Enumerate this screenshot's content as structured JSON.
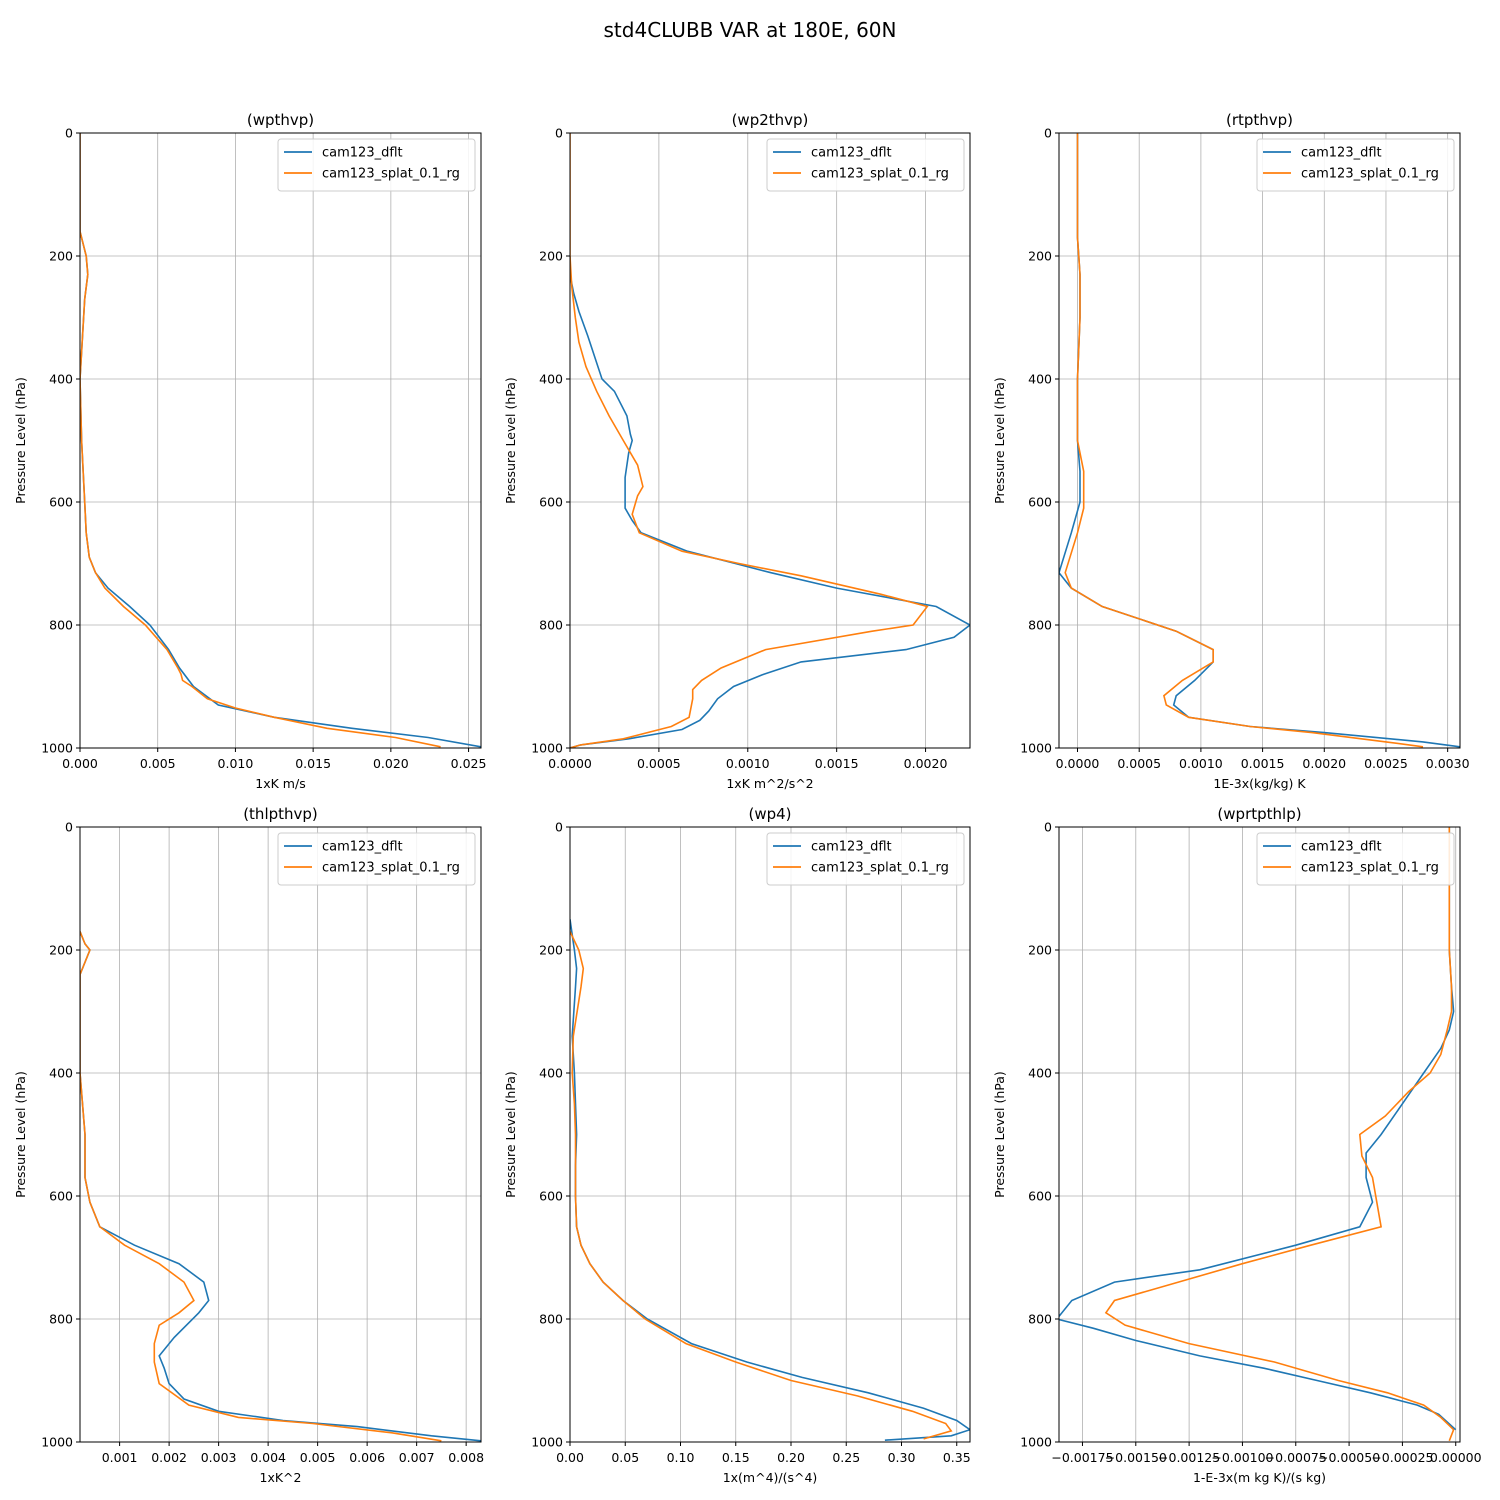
{
  "figure_title": "std4CLUBB VAR at 180E, 60N",
  "series_colors": [
    "#1f77b4",
    "#ff7f0e"
  ],
  "chart_data": [
    {
      "type": "line",
      "title": "(wpthvp)",
      "xlabel": "1xK m/s",
      "ylabel": "Pressure Level (hPa)",
      "xlim": [
        0,
        0.0258
      ],
      "ylim": [
        1000,
        0
      ],
      "y_inverted": true,
      "xticks": [
        0,
        0.005,
        0.01,
        0.015,
        0.02,
        0.025
      ],
      "xtick_labels": [
        "0.000",
        "0.005",
        "0.010",
        "0.015",
        "0.020",
        "0.025"
      ],
      "yticks": [
        0,
        200,
        400,
        600,
        800,
        1000
      ],
      "ytick_labels": [
        "0",
        "200",
        "400",
        "600",
        "800",
        "1000"
      ],
      "grid": true,
      "legend": "top-right",
      "series": [
        {
          "name": "cam123_dflt",
          "x": [
            0,
            0,
            0.0004,
            0.0005,
            0.0003,
            0,
            0.0001,
            0.0003,
            0.0004,
            0.0006,
            0.001,
            0.0018,
            0.0032,
            0.0045,
            0.0057,
            0.0064,
            0.0073,
            0.0089,
            0.0125,
            0.0175,
            0.0224,
            0.0258
          ],
          "y": [
            0,
            160,
            200,
            230,
            270,
            400,
            500,
            600,
            650,
            690,
            715,
            740,
            770,
            800,
            840,
            870,
            900,
            930,
            950,
            968,
            983,
            998
          ]
        },
        {
          "name": "cam123_splat_0.1_rg",
          "x": [
            0,
            0,
            0.0004,
            0.0005,
            0.0003,
            0,
            0.0001,
            0.0003,
            0.0004,
            0.0006,
            0.001,
            0.0016,
            0.0028,
            0.0042,
            0.0056,
            0.0063,
            0.0065,
            0.0066,
            0.0072,
            0.0082,
            0.01,
            0.0125,
            0.0159,
            0.0203,
            0.0232
          ],
          "y": [
            0,
            160,
            200,
            230,
            270,
            400,
            500,
            600,
            650,
            690,
            715,
            740,
            770,
            800,
            840,
            870,
            880,
            890,
            900,
            920,
            935,
            950,
            968,
            983,
            998
          ]
        }
      ]
    },
    {
      "type": "line",
      "title": "(wp2thvp)",
      "xlabel": "1xK m^2/s^2",
      "ylabel": "Pressure Level (hPa)",
      "xlim": [
        0,
        0.00225
      ],
      "ylim": [
        1000,
        0
      ],
      "y_inverted": true,
      "xticks": [
        0,
        0.0005,
        0.001,
        0.0015,
        0.002
      ],
      "xtick_labels": [
        "0.0000",
        "0.0005",
        "0.0010",
        "0.0015",
        "0.0020"
      ],
      "yticks": [
        0,
        200,
        400,
        600,
        800,
        1000
      ],
      "ytick_labels": [
        "0",
        "200",
        "400",
        "600",
        "800",
        "1000"
      ],
      "grid": true,
      "legend": "top-right",
      "series": [
        {
          "name": "cam123_dflt",
          "x": [
            0,
            0,
            2e-05,
            5e-05,
            0.0001,
            0.00018,
            0.00025,
            0.00032,
            0.00034,
            0.00035,
            0.00033,
            0.00031,
            0.00031,
            0.00035,
            0.0004,
            0.00066,
            0.00093,
            0.00113,
            0.0015,
            0.00206,
            0.00225,
            0.00216,
            0.00189,
            0.0013,
            0.00109,
            0.00092,
            0.00083,
            0.00078,
            0.00073,
            0.00063,
            0.00033,
            6e-05,
            0
          ],
          "y": [
            200,
            230,
            260,
            290,
            330,
            400,
            420,
            460,
            490,
            500,
            520,
            560,
            610,
            630,
            650,
            680,
            700,
            715,
            740,
            770,
            800,
            820,
            840,
            860,
            880,
            900,
            920,
            940,
            955,
            970,
            985,
            995,
            1000
          ]
        },
        {
          "name": "cam123_splat_0.1_rg",
          "x": [
            0,
            0,
            1e-05,
            3e-05,
            5e-05,
            9e-05,
            0.00015,
            0.00022,
            0.0003,
            0.00038,
            0.00041,
            0.00038,
            0.00035,
            0.00039,
            0.00063,
            0.00095,
            0.0013,
            0.00175,
            0.00201,
            0.00193,
            0.0017,
            0.0011,
            0.00085,
            0.00074,
            0.00069,
            0.00069,
            0.00067,
            0.00057,
            0.0003,
            6e-05,
            0
          ],
          "y": [
            0,
            200,
            250,
            300,
            340,
            380,
            420,
            460,
            500,
            540,
            575,
            590,
            620,
            650,
            680,
            700,
            720,
            750,
            770,
            800,
            810,
            840,
            870,
            890,
            905,
            920,
            950,
            965,
            985,
            995,
            1000
          ]
        }
      ]
    },
    {
      "type": "line",
      "title": "(rtpthvp)",
      "xlabel": "1E-3x(kg/kg) K",
      "ylabel": "Pressure Level (hPa)",
      "xlim": [
        -0.00015,
        0.0031
      ],
      "ylim": [
        1000,
        0
      ],
      "y_inverted": true,
      "xticks": [
        0,
        0.0005,
        0.001,
        0.0015,
        0.002,
        0.0025,
        0.003
      ],
      "xtick_labels": [
        "0.0000",
        "0.0005",
        "0.0010",
        "0.0015",
        "0.0020",
        "0.0025",
        "0.0030"
      ],
      "yticks": [
        0,
        200,
        400,
        600,
        800,
        1000
      ],
      "ytick_labels": [
        "0",
        "200",
        "400",
        "600",
        "800",
        "1000"
      ],
      "grid": true,
      "legend": "top-right",
      "series": [
        {
          "name": "cam123_dflt",
          "x": [
            0,
            0,
            2e-05,
            2e-05,
            0,
            0,
            2e-05,
            2e-05,
            -5e-05,
            -0.00015,
            -5e-05,
            0.0002,
            0.0008,
            0.0011,
            0.0011,
            0.00095,
            0.0008,
            0.00078,
            0.0009,
            0.0014,
            0.002,
            0.0028,
            0.0031
          ],
          "y": [
            0,
            170,
            230,
            300,
            400,
            500,
            550,
            600,
            650,
            715,
            740,
            770,
            810,
            840,
            860,
            890,
            915,
            930,
            950,
            965,
            975,
            990,
            998
          ]
        },
        {
          "name": "cam123_splat_0.1_rg",
          "x": [
            0,
            0,
            2e-05,
            2e-05,
            0,
            0,
            5e-05,
            5e-05,
            0,
            -0.0001,
            -5e-05,
            0.0002,
            0.0008,
            0.0011,
            0.0011,
            0.00085,
            0.0007,
            0.00072,
            0.0009,
            0.0014,
            0.0019,
            0.0025,
            0.0028
          ],
          "y": [
            0,
            170,
            230,
            300,
            400,
            500,
            550,
            610,
            650,
            715,
            740,
            770,
            810,
            840,
            860,
            890,
            915,
            930,
            950,
            965,
            975,
            990,
            998
          ]
        }
      ]
    },
    {
      "type": "line",
      "title": "(thlpthvp)",
      "xlabel": "1xK^2",
      "ylabel": "Pressure Level (hPa)",
      "xlim": [
        0.0002,
        0.0083
      ],
      "ylim": [
        1000,
        0
      ],
      "y_inverted": true,
      "xticks": [
        0.001,
        0.002,
        0.003,
        0.004,
        0.005,
        0.006,
        0.007,
        0.008
      ],
      "xtick_labels": [
        "0.001",
        "0.002",
        "0.003",
        "0.004",
        "0.005",
        "0.006",
        "0.007",
        "0.008"
      ],
      "yticks": [
        0,
        200,
        400,
        600,
        800,
        1000
      ],
      "ytick_labels": [
        "0",
        "200",
        "400",
        "600",
        "800",
        "1000"
      ],
      "grid": true,
      "legend": "top-right",
      "series": [
        {
          "name": "cam123_dflt",
          "x": [
            0.0002,
            0.0003,
            0.0004,
            0.0002,
            0.0002,
            0.0002,
            0.00025,
            0.0003,
            0.0003,
            0.0004,
            0.0006,
            0.0013,
            0.0022,
            0.0027,
            0.0028,
            0.0026,
            0.0021,
            0.0018,
            0.0019,
            0.002,
            0.0023,
            0.003,
            0.0043,
            0.0058,
            0.0073,
            0.0083
          ],
          "y": [
            170,
            190,
            200,
            240,
            300,
            400,
            450,
            500,
            570,
            610,
            650,
            680,
            710,
            740,
            770,
            790,
            830,
            860,
            880,
            905,
            930,
            950,
            965,
            975,
            990,
            998
          ]
        },
        {
          "name": "cam123_splat_0.1_rg",
          "x": [
            0.0002,
            0.0003,
            0.0004,
            0.0002,
            0.0002,
            0.0002,
            0.00025,
            0.0003,
            0.0003,
            0.0004,
            0.0006,
            0.0011,
            0.0018,
            0.0023,
            0.0025,
            0.0022,
            0.0018,
            0.0017,
            0.0017,
            0.0018,
            0.0024,
            0.0034,
            0.0049,
            0.0065,
            0.0075
          ],
          "y": [
            170,
            190,
            200,
            240,
            300,
            400,
            450,
            500,
            570,
            610,
            650,
            680,
            710,
            740,
            770,
            790,
            810,
            840,
            870,
            905,
            940,
            960,
            970,
            985,
            998
          ]
        }
      ]
    },
    {
      "type": "line",
      "title": "(wp4)",
      "xlabel": "1x(m^4)/(s^4)",
      "ylabel": "Pressure Level (hPa)",
      "xlim": [
        0,
        0.362
      ],
      "ylim": [
        1000,
        0
      ],
      "y_inverted": true,
      "xticks": [
        0,
        0.05,
        0.1,
        0.15,
        0.2,
        0.25,
        0.3,
        0.35
      ],
      "xtick_labels": [
        "0.00",
        "0.05",
        "0.10",
        "0.15",
        "0.20",
        "0.25",
        "0.30",
        "0.35"
      ],
      "yticks": [
        0,
        200,
        400,
        600,
        800,
        1000
      ],
      "ytick_labels": [
        "0",
        "200",
        "400",
        "600",
        "800",
        "1000"
      ],
      "grid": true,
      "legend": "top-right",
      "series": [
        {
          "name": "cam123_dflt",
          "x": [
            0,
            0.004,
            0.006,
            0.005,
            0.002,
            0.004,
            0.005,
            0.006,
            0.005,
            0.005,
            0.006,
            0.01,
            0.018,
            0.03,
            0.048,
            0.07,
            0.11,
            0.16,
            0.21,
            0.27,
            0.32,
            0.35,
            0.362,
            0.345,
            0.285
          ],
          "y": [
            150,
            200,
            230,
            260,
            340,
            400,
            450,
            500,
            550,
            600,
            650,
            680,
            710,
            740,
            770,
            800,
            840,
            870,
            895,
            920,
            945,
            965,
            980,
            990,
            997
          ]
        },
        {
          "name": "cam123_splat_0.1_rg",
          "x": [
            0,
            0.008,
            0.012,
            0.01,
            0.003,
            0.002,
            0.004,
            0.005,
            0.005,
            0.005,
            0.006,
            0.01,
            0.018,
            0.03,
            0.048,
            0.068,
            0.105,
            0.15,
            0.2,
            0.26,
            0.31,
            0.34,
            0.345,
            0.32
          ],
          "y": [
            170,
            200,
            230,
            260,
            340,
            400,
            450,
            500,
            550,
            600,
            650,
            680,
            710,
            740,
            770,
            800,
            840,
            870,
            900,
            925,
            950,
            970,
            982,
            995
          ]
        }
      ]
    },
    {
      "type": "line",
      "title": "(wprtpthlp)",
      "xlabel": "1-E-3x(m kg K)/(s kg)",
      "ylabel": "Pressure Level (hPa)",
      "xlim": [
        -0.00186,
        2e-05
      ],
      "ylim": [
        1000,
        0
      ],
      "y_inverted": true,
      "xticks": [
        -0.00175,
        -0.0015,
        -0.00125,
        -0.001,
        -0.00075,
        -0.0005,
        -0.00025,
        0
      ],
      "xtick_labels": [
        "−0.00175",
        "−0.00150",
        "−0.00125",
        "−0.00100",
        "−0.00075",
        "−0.00050",
        "−0.00025",
        "0.00000"
      ],
      "yticks": [
        0,
        200,
        400,
        600,
        800,
        1000
      ],
      "ytick_labels": [
        "0",
        "200",
        "400",
        "600",
        "800",
        "1000"
      ],
      "grid": true,
      "legend": "top-right",
      "series": [
        {
          "name": "cam123_dflt",
          "x": [
            -3e-05,
            -3e-05,
            -2e-05,
            -1e-05,
            -3e-05,
            -7e-05,
            -0.00015,
            -0.00025,
            -0.00035,
            -0.00042,
            -0.00042,
            -0.00039,
            -0.00045,
            -0.00075,
            -0.0012,
            -0.0016,
            -0.0018,
            -0.00187,
            -0.0017,
            -0.0015,
            -0.0012,
            -0.0009,
            -0.00065,
            -0.0004,
            -0.00018,
            -8e-05,
            0
          ],
          "y": [
            0,
            200,
            260,
            300,
            330,
            360,
            400,
            450,
            500,
            530,
            570,
            610,
            650,
            680,
            720,
            740,
            770,
            800,
            815,
            835,
            860,
            880,
            900,
            920,
            940,
            955,
            980
          ]
        },
        {
          "name": "cam123_splat_0.1_rg",
          "x": [
            -3e-05,
            -3e-05,
            -2e-05,
            -2e-05,
            -4e-05,
            -7e-05,
            -0.00012,
            -0.00022,
            -0.00033,
            -0.00045,
            -0.00044,
            -0.00039,
            -0.00035,
            -0.00068,
            -0.001,
            -0.0013,
            -0.0016,
            -0.00164,
            -0.00155,
            -0.00125,
            -0.00085,
            -0.00055,
            -0.00032,
            -0.00015,
            -7e-05,
            -1e-05,
            -3e-05
          ],
          "y": [
            0,
            200,
            260,
            300,
            330,
            370,
            400,
            430,
            470,
            500,
            535,
            570,
            650,
            680,
            710,
            740,
            770,
            790,
            810,
            840,
            870,
            900,
            920,
            940,
            960,
            980,
            998
          ]
        }
      ]
    }
  ]
}
